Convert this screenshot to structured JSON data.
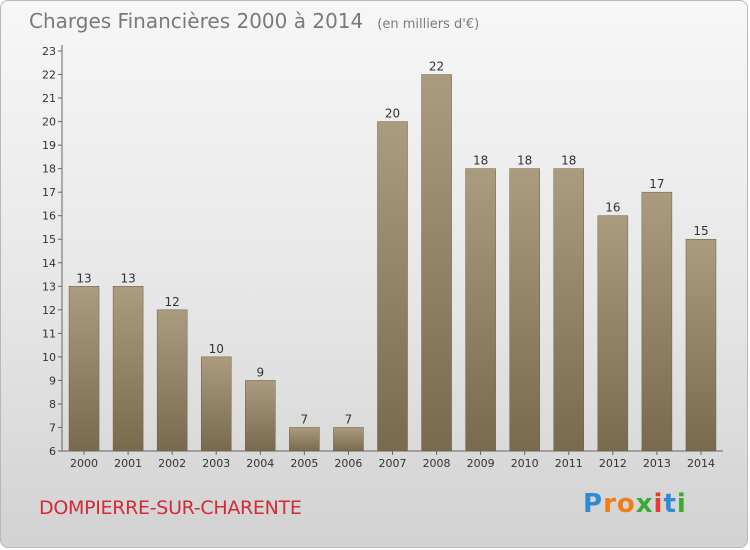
{
  "header": {
    "title": "Charges Financières 2000 à 2014",
    "subtitle": "(en milliers d'€)"
  },
  "footer": {
    "commune": "DOMPIERRE-SUR-CHARENTE",
    "logo_text": "Proxiti"
  },
  "colors": {
    "bar_top": "#ac9c7f",
    "bar_bottom": "#7a6a4d",
    "commune_text": "#d12a3a",
    "logo_letters": [
      "#2f8ad6",
      "#ef7d1a",
      "#ef7d1a",
      "#3aaa35",
      "#e63b30",
      "#2f8ad6",
      "#3aaa35"
    ]
  },
  "chart_data": {
    "type": "bar",
    "categories": [
      "2000",
      "2001",
      "2002",
      "2003",
      "2004",
      "2005",
      "2006",
      "2007",
      "2008",
      "2009",
      "2010",
      "2011",
      "2012",
      "2013",
      "2014"
    ],
    "values": [
      13,
      13,
      12,
      10,
      9,
      7,
      7,
      20,
      22,
      18,
      18,
      18,
      16,
      17,
      15
    ],
    "ylim": [
      6,
      23
    ],
    "yticks": [
      6,
      7,
      8,
      9,
      10,
      11,
      12,
      13,
      14,
      15,
      16,
      17,
      18,
      19,
      20,
      21,
      22,
      23
    ],
    "grid": false,
    "xlabel": "",
    "ylabel": ""
  }
}
